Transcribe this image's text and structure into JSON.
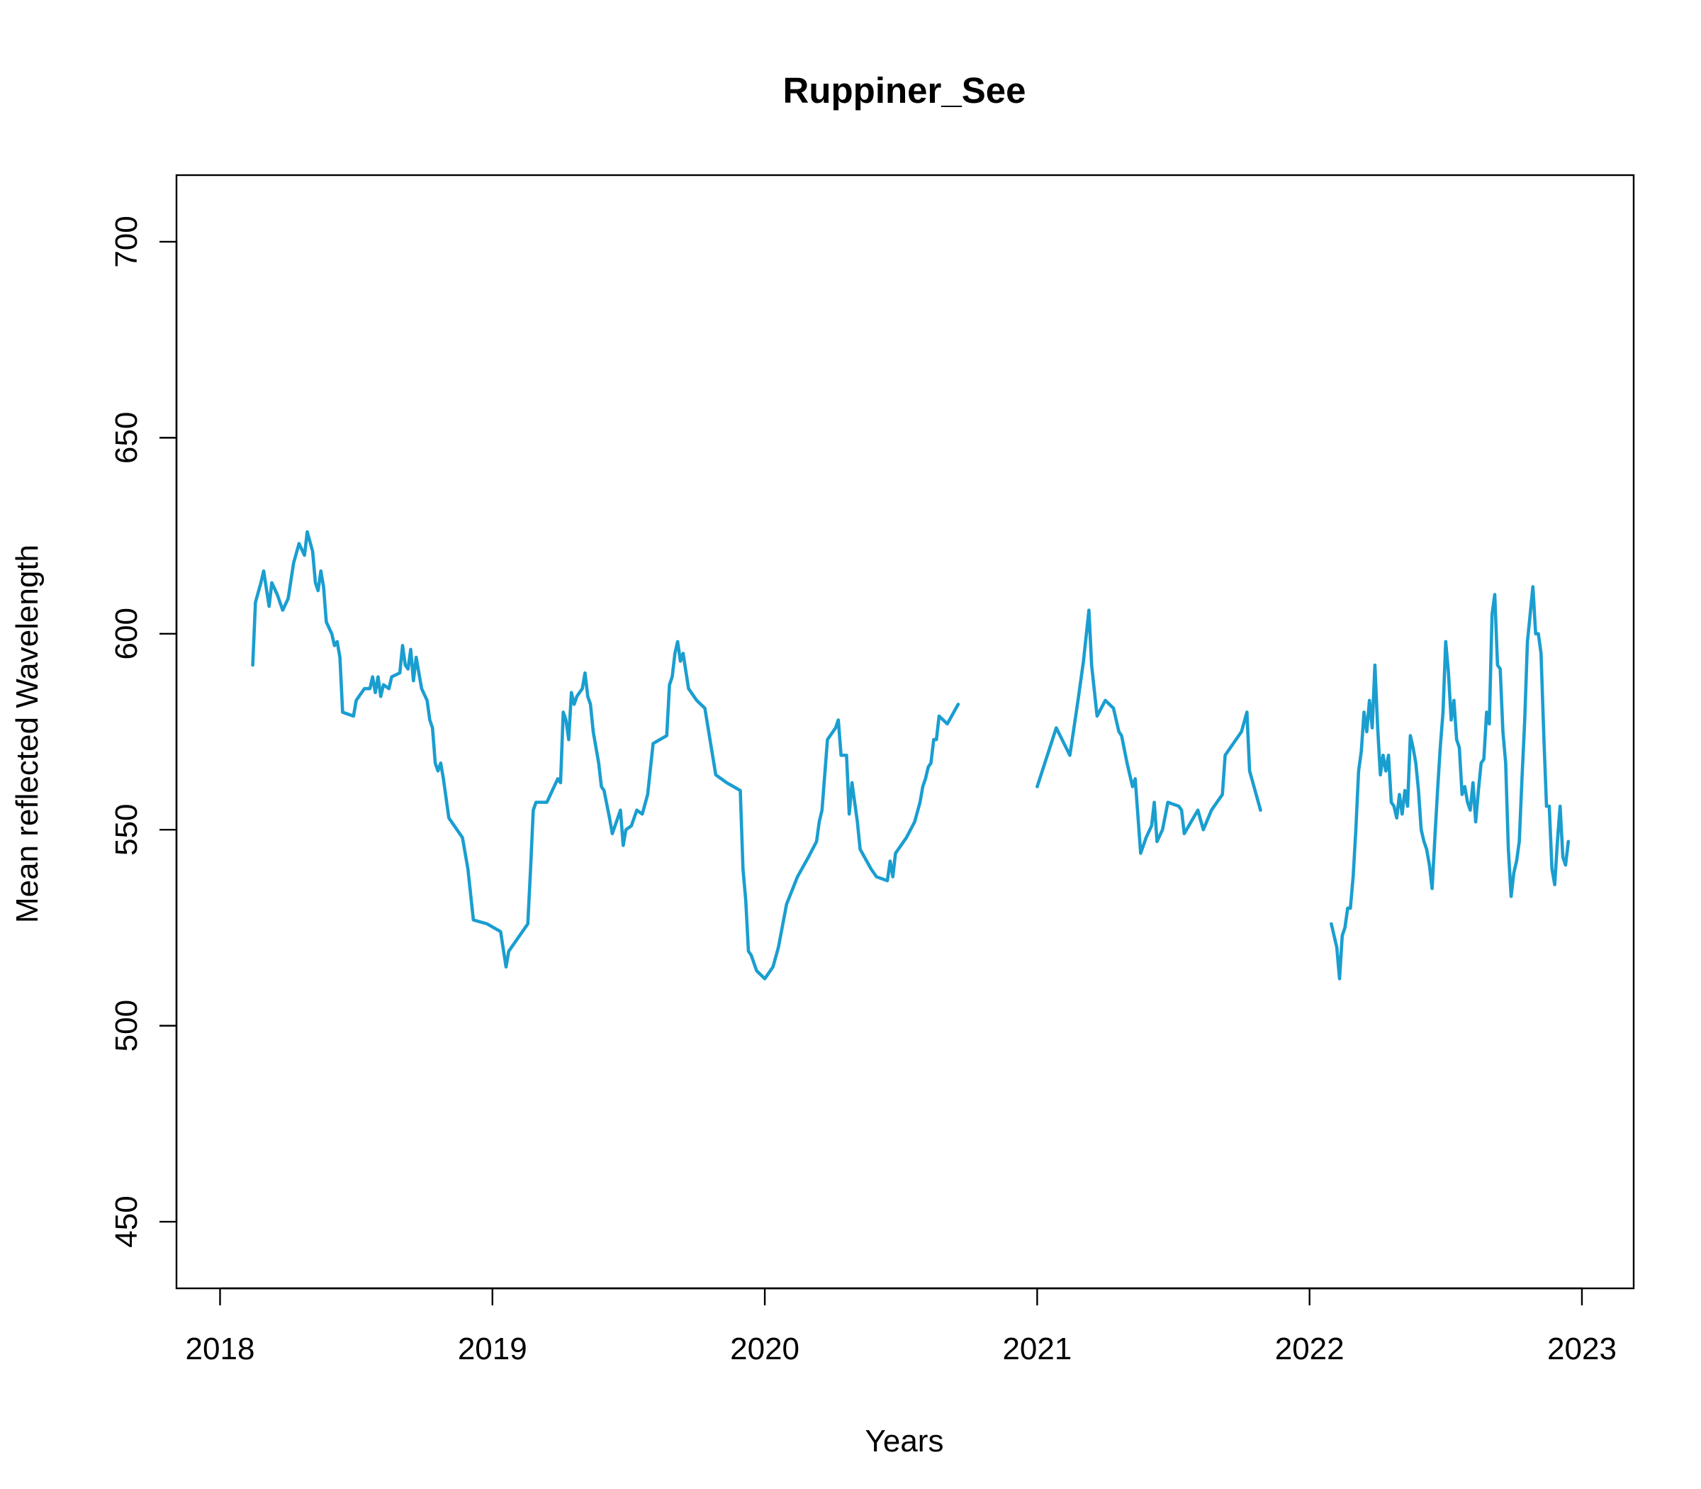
{
  "chart_data": {
    "type": "line",
    "title": "Ruppiner_See",
    "xlabel": "Years",
    "ylabel": "Mean reflected Wavelength",
    "xlim": [
      2017.84,
      2023.19
    ],
    "ylim": [
      433,
      717
    ],
    "x_ticks": [
      2018,
      2019,
      2020,
      2021,
      2022,
      2023
    ],
    "x_tick_labels": [
      "2018",
      "2019",
      "2020",
      "2021",
      "2022",
      "2023"
    ],
    "y_ticks": [
      450,
      500,
      550,
      600,
      650,
      700
    ],
    "y_tick_labels": [
      "450",
      "500",
      "550",
      "600",
      "650",
      "700"
    ],
    "grid": false,
    "legend": "none",
    "color": "#1a9ed0",
    "segments": [
      [
        [
          2018.12,
          592
        ],
        [
          2018.13,
          608
        ],
        [
          2018.15,
          613
        ],
        [
          2018.16,
          616
        ],
        [
          2018.18,
          607
        ],
        [
          2018.19,
          613
        ],
        [
          2018.21,
          610
        ],
        [
          2018.23,
          606
        ],
        [
          2018.25,
          609
        ],
        [
          2018.27,
          618
        ],
        [
          2018.29,
          623
        ],
        [
          2018.31,
          620
        ],
        [
          2018.32,
          626
        ],
        [
          2018.34,
          621
        ],
        [
          2018.35,
          613
        ],
        [
          2018.36,
          611
        ],
        [
          2018.37,
          616
        ],
        [
          2018.38,
          612
        ],
        [
          2018.39,
          603
        ],
        [
          2018.41,
          600
        ],
        [
          2018.42,
          597
        ],
        [
          2018.43,
          598
        ],
        [
          2018.44,
          594
        ],
        [
          2018.45,
          580
        ],
        [
          2018.49,
          579
        ],
        [
          2018.5,
          583
        ],
        [
          2018.52,
          585
        ],
        [
          2018.53,
          586
        ],
        [
          2018.55,
          586
        ],
        [
          2018.56,
          589
        ],
        [
          2018.57,
          585
        ],
        [
          2018.58,
          589
        ],
        [
          2018.59,
          584
        ],
        [
          2018.6,
          587
        ],
        [
          2018.62,
          586
        ],
        [
          2018.63,
          589
        ],
        [
          2018.66,
          590
        ],
        [
          2018.67,
          597
        ],
        [
          2018.68,
          592
        ],
        [
          2018.69,
          591
        ],
        [
          2018.7,
          596
        ],
        [
          2018.71,
          588
        ],
        [
          2018.72,
          594
        ],
        [
          2018.73,
          590
        ],
        [
          2018.74,
          586
        ],
        [
          2018.76,
          583
        ],
        [
          2018.77,
          578
        ],
        [
          2018.78,
          576
        ],
        [
          2018.79,
          567
        ],
        [
          2018.8,
          565
        ],
        [
          2018.81,
          567
        ],
        [
          2018.82,
          563
        ],
        [
          2018.84,
          553
        ],
        [
          2018.86,
          551
        ],
        [
          2018.89,
          548
        ],
        [
          2018.91,
          540
        ],
        [
          2018.93,
          527
        ],
        [
          2018.98,
          526
        ],
        [
          2019.03,
          524
        ],
        [
          2019.05,
          515
        ],
        [
          2019.06,
          519
        ],
        [
          2019.13,
          526
        ],
        [
          2019.14,
          540
        ],
        [
          2019.15,
          555
        ],
        [
          2019.16,
          557
        ],
        [
          2019.2,
          557
        ],
        [
          2019.22,
          560
        ],
        [
          2019.24,
          563
        ],
        [
          2019.25,
          562
        ],
        [
          2019.26,
          580
        ],
        [
          2019.27,
          578
        ],
        [
          2019.28,
          573
        ],
        [
          2019.29,
          585
        ],
        [
          2019.3,
          582
        ],
        [
          2019.31,
          584
        ],
        [
          2019.33,
          586
        ],
        [
          2019.34,
          590
        ],
        [
          2019.35,
          584
        ],
        [
          2019.36,
          582
        ],
        [
          2019.37,
          575
        ],
        [
          2019.39,
          567
        ],
        [
          2019.4,
          561
        ],
        [
          2019.41,
          560
        ],
        [
          2019.43,
          553
        ],
        [
          2019.44,
          549
        ],
        [
          2019.46,
          553
        ],
        [
          2019.47,
          555
        ],
        [
          2019.48,
          546
        ],
        [
          2019.49,
          550
        ],
        [
          2019.51,
          551
        ],
        [
          2019.53,
          555
        ],
        [
          2019.55,
          554
        ],
        [
          2019.57,
          559
        ],
        [
          2019.59,
          572
        ],
        [
          2019.64,
          574
        ],
        [
          2019.65,
          587
        ],
        [
          2019.66,
          589
        ],
        [
          2019.67,
          595
        ],
        [
          2019.68,
          598
        ],
        [
          2019.69,
          593
        ],
        [
          2019.7,
          595
        ],
        [
          2019.72,
          586
        ],
        [
          2019.75,
          583
        ],
        [
          2019.78,
          581
        ],
        [
          2019.82,
          564
        ],
        [
          2019.86,
          562
        ],
        [
          2019.91,
          560
        ],
        [
          2019.92,
          540
        ],
        [
          2019.93,
          532
        ],
        [
          2019.94,
          519
        ],
        [
          2019.95,
          518
        ],
        [
          2019.97,
          514
        ],
        [
          2020.0,
          512
        ],
        [
          2020.03,
          515
        ],
        [
          2020.05,
          520
        ],
        [
          2020.08,
          531
        ],
        [
          2020.12,
          538
        ],
        [
          2020.16,
          543
        ],
        [
          2020.19,
          547
        ],
        [
          2020.2,
          552
        ],
        [
          2020.21,
          555
        ],
        [
          2020.23,
          573
        ],
        [
          2020.26,
          576
        ],
        [
          2020.27,
          578
        ],
        [
          2020.28,
          569
        ],
        [
          2020.3,
          569
        ],
        [
          2020.31,
          554
        ],
        [
          2020.32,
          562
        ],
        [
          2020.34,
          552
        ],
        [
          2020.35,
          545
        ],
        [
          2020.39,
          540
        ],
        [
          2020.41,
          538
        ],
        [
          2020.45,
          537
        ],
        [
          2020.46,
          542
        ],
        [
          2020.47,
          538
        ],
        [
          2020.48,
          544
        ],
        [
          2020.52,
          548
        ],
        [
          2020.55,
          552
        ],
        [
          2020.57,
          557
        ],
        [
          2020.58,
          561
        ],
        [
          2020.59,
          563
        ],
        [
          2020.6,
          566
        ],
        [
          2020.61,
          567
        ],
        [
          2020.62,
          573
        ],
        [
          2020.63,
          573
        ],
        [
          2020.64,
          579
        ],
        [
          2020.67,
          577
        ],
        [
          2020.71,
          582
        ]
      ],
      [
        [
          2021.0,
          561
        ],
        [
          2021.07,
          576
        ],
        [
          2021.12,
          569
        ],
        [
          2021.15,
          583
        ],
        [
          2021.17,
          593
        ],
        [
          2021.19,
          606
        ],
        [
          2021.2,
          592
        ],
        [
          2021.22,
          579
        ],
        [
          2021.25,
          583
        ],
        [
          2021.28,
          581
        ],
        [
          2021.3,
          575
        ],
        [
          2021.31,
          574
        ],
        [
          2021.33,
          567
        ],
        [
          2021.35,
          561
        ],
        [
          2021.36,
          563
        ],
        [
          2021.38,
          544
        ],
        [
          2021.4,
          548
        ],
        [
          2021.42,
          551
        ],
        [
          2021.43,
          557
        ],
        [
          2021.44,
          547
        ],
        [
          2021.46,
          550
        ],
        [
          2021.48,
          557
        ],
        [
          2021.52,
          556
        ],
        [
          2021.53,
          555
        ],
        [
          2021.54,
          549
        ],
        [
          2021.59,
          555
        ],
        [
          2021.61,
          550
        ],
        [
          2021.64,
          555
        ],
        [
          2021.68,
          559
        ],
        [
          2021.69,
          569
        ],
        [
          2021.75,
          575
        ],
        [
          2021.77,
          580
        ],
        [
          2021.78,
          565
        ],
        [
          2021.8,
          560
        ],
        [
          2021.82,
          555
        ]
      ],
      [
        [
          2022.08,
          526
        ],
        [
          2022.1,
          520
        ],
        [
          2022.11,
          512
        ],
        [
          2022.12,
          523
        ],
        [
          2022.13,
          525
        ],
        [
          2022.14,
          530
        ],
        [
          2022.15,
          530
        ],
        [
          2022.16,
          538
        ],
        [
          2022.17,
          550
        ],
        [
          2022.18,
          565
        ],
        [
          2022.19,
          570
        ],
        [
          2022.2,
          580
        ],
        [
          2022.21,
          575
        ],
        [
          2022.22,
          583
        ],
        [
          2022.23,
          576
        ],
        [
          2022.24,
          592
        ],
        [
          2022.25,
          576
        ],
        [
          2022.26,
          564
        ],
        [
          2022.27,
          569
        ],
        [
          2022.28,
          565
        ],
        [
          2022.29,
          569
        ],
        [
          2022.3,
          557
        ],
        [
          2022.31,
          556
        ],
        [
          2022.32,
          553
        ],
        [
          2022.33,
          559
        ],
        [
          2022.34,
          554
        ],
        [
          2022.35,
          560
        ],
        [
          2022.36,
          556
        ],
        [
          2022.37,
          574
        ],
        [
          2022.38,
          571
        ],
        [
          2022.39,
          567
        ],
        [
          2022.4,
          560
        ],
        [
          2022.41,
          550
        ],
        [
          2022.42,
          547
        ],
        [
          2022.43,
          545
        ],
        [
          2022.44,
          541
        ],
        [
          2022.45,
          535
        ],
        [
          2022.46,
          548
        ],
        [
          2022.47,
          560
        ],
        [
          2022.48,
          571
        ],
        [
          2022.49,
          580
        ],
        [
          2022.5,
          598
        ],
        [
          2022.51,
          590
        ],
        [
          2022.52,
          578
        ],
        [
          2022.53,
          583
        ],
        [
          2022.54,
          573
        ],
        [
          2022.55,
          571
        ],
        [
          2022.56,
          559
        ],
        [
          2022.57,
          561
        ],
        [
          2022.58,
          557
        ],
        [
          2022.59,
          555
        ],
        [
          2022.6,
          562
        ],
        [
          2022.61,
          552
        ],
        [
          2022.62,
          560
        ],
        [
          2022.63,
          567
        ],
        [
          2022.64,
          568
        ],
        [
          2022.65,
          580
        ],
        [
          2022.66,
          577
        ],
        [
          2022.67,
          605
        ],
        [
          2022.68,
          610
        ],
        [
          2022.69,
          592
        ],
        [
          2022.7,
          591
        ],
        [
          2022.71,
          575
        ],
        [
          2022.72,
          567
        ],
        [
          2022.73,
          545
        ],
        [
          2022.74,
          533
        ],
        [
          2022.75,
          539
        ],
        [
          2022.76,
          542
        ],
        [
          2022.77,
          547
        ],
        [
          2022.78,
          563
        ],
        [
          2022.79,
          578
        ],
        [
          2022.8,
          598
        ],
        [
          2022.81,
          605
        ],
        [
          2022.82,
          612
        ],
        [
          2022.83,
          600
        ],
        [
          2022.84,
          600
        ],
        [
          2022.85,
          595
        ],
        [
          2022.86,
          574
        ],
        [
          2022.87,
          556
        ],
        [
          2022.88,
          556
        ],
        [
          2022.89,
          540
        ],
        [
          2022.9,
          536
        ],
        [
          2022.91,
          547
        ],
        [
          2022.92,
          556
        ],
        [
          2022.93,
          543
        ],
        [
          2022.94,
          541
        ],
        [
          2022.95,
          547
        ]
      ]
    ]
  }
}
